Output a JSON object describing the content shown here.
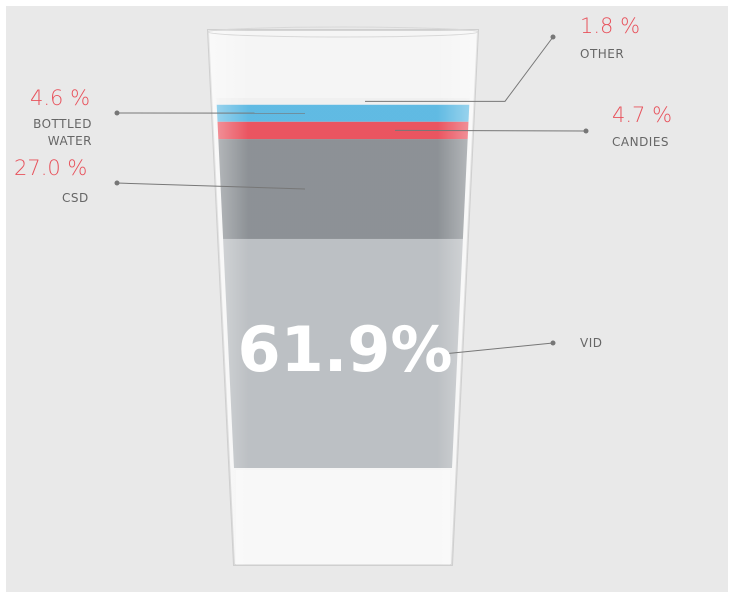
{
  "chart_data": {
    "type": "glass",
    "categories": [
      "VID",
      "CSD",
      "CANDIES",
      "BOTTLED WATER",
      "OTHER"
    ],
    "values": [
      61.9,
      27.0,
      4.7,
      4.6,
      1.8
    ],
    "value_labels": [
      "61.9%",
      "27.0 %",
      "4.7 %",
      "4.6 %",
      "1.8 %"
    ],
    "colors": [
      "#b5b9bd",
      "#80858a",
      "#e8424f",
      "#4fb3e0",
      "#eeeeee"
    ]
  }
}
